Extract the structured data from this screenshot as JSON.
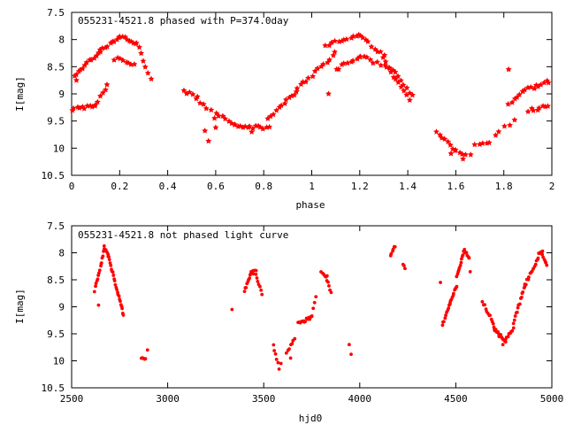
{
  "chart_data": [
    {
      "type": "scatter",
      "title": "055231-4521.8 phased with P=374.0day",
      "xlabel": "phase",
      "ylabel": "I[mag]",
      "xlim": [
        0,
        2
      ],
      "ylim": [
        10.5,
        7.5
      ],
      "y_inverted": true,
      "grid": false,
      "marker": "star",
      "color": "#ff0000",
      "xticks": [
        0,
        0.2,
        0.4,
        0.6,
        0.8,
        1,
        1.2,
        1.4,
        1.6,
        1.8,
        2
      ],
      "xtick_labels": [
        "0",
        "0.2",
        "0.4",
        "0.6",
        "0.8",
        "1",
        "1.2",
        "1.4",
        "1.6",
        "1.8",
        "2"
      ],
      "yticks": [
        7.5,
        8,
        8.5,
        9,
        9.5,
        10,
        10.5
      ],
      "ytick_labels": [
        "7.5",
        "8",
        "8.5",
        "9",
        "9.5",
        "10",
        "10.5"
      ],
      "segments": [
        {
          "x0": 0.0,
          "x1": 0.1,
          "y0": 9.28,
          "y1": 9.22,
          "n": 10
        },
        {
          "x0": 0.1,
          "x1": 0.15,
          "y0": 9.2,
          "y1": 8.85,
          "n": 6
        },
        {
          "x0": 0.0,
          "x1": 0.12,
          "y0": 8.72,
          "y1": 8.2,
          "n": 14
        },
        {
          "x0": 0.12,
          "x1": 0.2,
          "y0": 8.2,
          "y1": 7.95,
          "n": 9
        },
        {
          "x0": 0.2,
          "x1": 0.27,
          "y0": 7.95,
          "y1": 8.05,
          "n": 8
        },
        {
          "x0": 0.27,
          "x1": 0.33,
          "y0": 8.05,
          "y1": 8.75,
          "n": 7
        },
        {
          "x0": 0.18,
          "x1": 0.26,
          "y0": 8.35,
          "y1": 8.45,
          "n": 8
        },
        {
          "x0": 0.47,
          "x1": 0.52,
          "y0": 8.95,
          "y1": 9.05,
          "n": 5
        },
        {
          "x0": 0.52,
          "x1": 0.58,
          "y0": 9.1,
          "y1": 9.3,
          "n": 5
        },
        {
          "x0": 0.6,
          "x1": 0.68,
          "y0": 9.35,
          "y1": 9.55,
          "n": 7
        },
        {
          "x0": 0.68,
          "x1": 0.82,
          "y0": 9.6,
          "y1": 9.62,
          "n": 14
        },
        {
          "x0": 0.82,
          "x1": 0.94,
          "y0": 9.45,
          "y1": 8.95,
          "n": 12
        },
        {
          "x0": 0.94,
          "x1": 1.1,
          "y0": 8.9,
          "y1": 8.25,
          "n": 14
        },
        {
          "x0": 1.06,
          "x1": 1.2,
          "y0": 8.1,
          "y1": 7.92,
          "n": 12
        },
        {
          "x0": 1.2,
          "x1": 1.3,
          "y0": 7.92,
          "y1": 8.3,
          "n": 9
        },
        {
          "x0": 1.3,
          "x1": 1.42,
          "y0": 8.35,
          "y1": 9.05,
          "n": 11
        },
        {
          "x0": 1.1,
          "x1": 1.2,
          "y0": 8.55,
          "y1": 8.3,
          "n": 9
        },
        {
          "x0": 1.2,
          "x1": 1.33,
          "y0": 8.3,
          "y1": 8.55,
          "n": 10
        },
        {
          "x0": 1.33,
          "x1": 1.41,
          "y0": 8.6,
          "y1": 9.1,
          "n": 8
        },
        {
          "x0": 1.52,
          "x1": 1.6,
          "y0": 9.7,
          "y1": 10.05,
          "n": 8
        },
        {
          "x0": 1.6,
          "x1": 1.66,
          "y0": 10.05,
          "y1": 10.15,
          "n": 5
        },
        {
          "x0": 1.68,
          "x1": 1.74,
          "y0": 9.95,
          "y1": 9.9,
          "n": 5
        },
        {
          "x0": 1.76,
          "x1": 1.84,
          "y0": 9.75,
          "y1": 9.5,
          "n": 5
        },
        {
          "x0": 1.82,
          "x1": 1.88,
          "y0": 9.2,
          "y1": 8.95,
          "n": 6
        },
        {
          "x0": 1.88,
          "x1": 2.0,
          "y0": 8.95,
          "y1": 8.75,
          "n": 12
        },
        {
          "x0": 1.9,
          "x1": 2.0,
          "y0": 9.3,
          "y1": 9.22,
          "n": 9
        }
      ],
      "points": [
        [
          0.555,
          9.68
        ],
        [
          0.57,
          9.87
        ],
        [
          0.595,
          9.45
        ],
        [
          0.6,
          9.62
        ],
        [
          1.07,
          9.0
        ],
        [
          1.82,
          8.55
        ],
        [
          1.63,
          10.2
        ],
        [
          1.58,
          10.1
        ],
        [
          0.75,
          9.7
        ],
        [
          0.02,
          8.75
        ]
      ]
    },
    {
      "type": "scatter",
      "title": "055231-4521.8 not phased light curve",
      "xlabel": "hjd0",
      "ylabel": "I[mag]",
      "xlim": [
        2500,
        5000
      ],
      "ylim": [
        10.5,
        7.5
      ],
      "y_inverted": true,
      "grid": false,
      "marker": "dot",
      "color": "#ff0000",
      "xticks": [
        2500,
        3000,
        3500,
        4000,
        4500,
        5000
      ],
      "xtick_labels": [
        "2500",
        "3000",
        "3500",
        "4000",
        "4500",
        "5000"
      ],
      "yticks": [
        7.5,
        8,
        8.5,
        9,
        9.5,
        10,
        10.5
      ],
      "ytick_labels": [
        "7.5",
        "8",
        "8.5",
        "9",
        "9.5",
        "10",
        "10.5"
      ],
      "segments": [
        {
          "x0": 2620,
          "x1": 2655,
          "y0": 8.7,
          "y1": 8.2,
          "n": 10
        },
        {
          "x0": 2655,
          "x1": 2670,
          "y0": 8.2,
          "y1": 7.9,
          "n": 5
        },
        {
          "x0": 2670,
          "x1": 2690,
          "y0": 7.9,
          "y1": 8.0,
          "n": 5
        },
        {
          "x0": 2690,
          "x1": 2770,
          "y0": 8.05,
          "y1": 9.15,
          "n": 24
        },
        {
          "x0": 2865,
          "x1": 2885,
          "y0": 9.95,
          "y1": 9.95,
          "n": 5
        },
        {
          "x0": 3400,
          "x1": 3430,
          "y0": 8.7,
          "y1": 8.42,
          "n": 8
        },
        {
          "x0": 3430,
          "x1": 3460,
          "y0": 8.38,
          "y1": 8.35,
          "n": 6
        },
        {
          "x0": 3460,
          "x1": 3490,
          "y0": 8.4,
          "y1": 8.75,
          "n": 7
        },
        {
          "x0": 3550,
          "x1": 3580,
          "y0": 9.7,
          "y1": 10.15,
          "n": 6
        },
        {
          "x0": 3620,
          "x1": 3660,
          "y0": 9.85,
          "y1": 9.6,
          "n": 7
        },
        {
          "x0": 3680,
          "x1": 3750,
          "y0": 9.3,
          "y1": 9.2,
          "n": 14
        },
        {
          "x0": 3750,
          "x1": 3770,
          "y0": 9.15,
          "y1": 8.8,
          "n": 4
        },
        {
          "x0": 3800,
          "x1": 3830,
          "y0": 8.35,
          "y1": 8.45,
          "n": 6
        },
        {
          "x0": 3830,
          "x1": 3850,
          "y0": 8.5,
          "y1": 8.75,
          "n": 5
        },
        {
          "x0": 4160,
          "x1": 4185,
          "y0": 8.05,
          "y1": 7.88,
          "n": 6
        },
        {
          "x0": 4225,
          "x1": 4235,
          "y0": 8.2,
          "y1": 8.28,
          "n": 3
        },
        {
          "x0": 4430,
          "x1": 4470,
          "y0": 9.35,
          "y1": 8.95,
          "n": 10
        },
        {
          "x0": 4470,
          "x1": 4505,
          "y0": 8.95,
          "y1": 8.6,
          "n": 10
        },
        {
          "x0": 4505,
          "x1": 4545,
          "y0": 8.45,
          "y1": 7.95,
          "n": 12
        },
        {
          "x0": 4545,
          "x1": 4570,
          "y0": 7.95,
          "y1": 8.1,
          "n": 6
        },
        {
          "x0": 4640,
          "x1": 4700,
          "y0": 8.9,
          "y1": 9.35,
          "n": 12
        },
        {
          "x0": 4700,
          "x1": 4760,
          "y0": 9.4,
          "y1": 9.65,
          "n": 14
        },
        {
          "x0": 4760,
          "x1": 4800,
          "y0": 9.6,
          "y1": 9.4,
          "n": 8
        },
        {
          "x0": 4800,
          "x1": 4860,
          "y0": 9.3,
          "y1": 8.6,
          "n": 14
        },
        {
          "x0": 4860,
          "x1": 4930,
          "y0": 8.6,
          "y1": 8.1,
          "n": 14
        },
        {
          "x0": 4930,
          "x1": 4950,
          "y0": 8.0,
          "y1": 7.95,
          "n": 4
        },
        {
          "x0": 4950,
          "x1": 4975,
          "y0": 8.0,
          "y1": 8.25,
          "n": 6
        }
      ],
      "points": [
        [
          2640,
          8.97
        ],
        [
          2895,
          9.8
        ],
        [
          3335,
          9.05
        ],
        [
          3445,
          8.33
        ],
        [
          3590,
          10.05
        ],
        [
          3640,
          9.95
        ],
        [
          3945,
          9.7
        ],
        [
          3955,
          9.88
        ],
        [
          4420,
          8.55
        ],
        [
          4575,
          8.35
        ],
        [
          4725,
          9.55
        ],
        [
          4745,
          9.7
        ]
      ]
    }
  ]
}
